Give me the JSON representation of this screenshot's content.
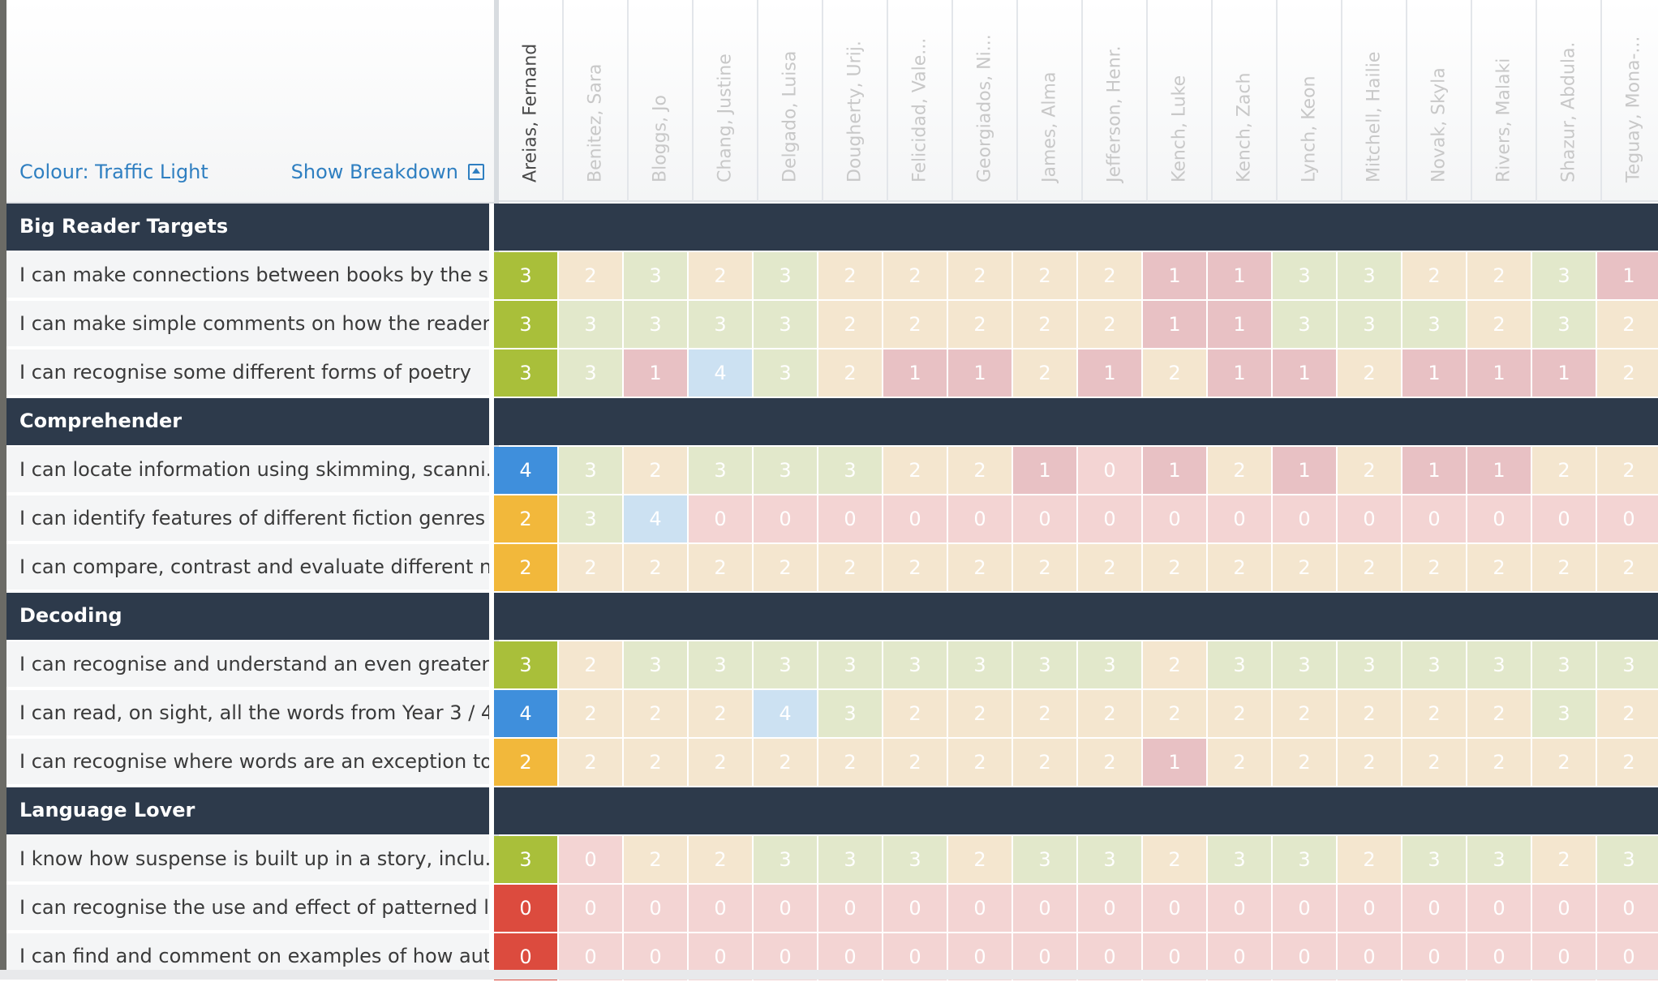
{
  "header": {
    "colour_label": "Colour: Traffic Light",
    "breakdown_label": "Show Breakdown",
    "breakdown_icon": "collapse-up-icon"
  },
  "students": [
    "Areias, Fernand",
    "Benitez, Sara",
    "Bloggs, Jo",
    "Chang, Justine",
    "Delgado, Luisa",
    "Dougherty, Urij.",
    "Felicidad, Vale...",
    "Georgiados, Ni...",
    "James, Alma",
    "Jefferson, Henr.",
    "Kench, Luke",
    "Kench, Zach",
    "Lynch, Keon",
    "Mitchell, Hailie",
    "Novak, Skyla",
    "Rivers, Malaki",
    "Shazur, Abdula.",
    "Teguay, Mona-..."
  ],
  "active_student_index": 0,
  "colours": {
    "category_bg": "#2d3a4b",
    "link": "#2f7fc1",
    "score_0": "#dc4b3e",
    "score_1": "#d87b84",
    "score_2": "#f2b83b",
    "score_3": "#a9bf3a",
    "score_4": "#3f8fdc"
  },
  "categories": [
    {
      "name": "Big Reader Targets",
      "rows": [
        {
          "label": "I can make connections between books by the s...",
          "scores": [
            "3",
            "2",
            "3",
            "2",
            "3",
            "2",
            "2",
            "2",
            "2",
            "2",
            "1",
            "1",
            "3",
            "3",
            "2",
            "2",
            "3",
            "1"
          ]
        },
        {
          "label": "I can make simple comments on how the reader...",
          "scores": [
            "3",
            "3",
            "3",
            "3",
            "3",
            "2",
            "2",
            "2",
            "2",
            "2",
            "1",
            "1",
            "3",
            "3",
            "3",
            "2",
            "3",
            "2"
          ]
        },
        {
          "label": "I can recognise some different forms of poetry",
          "scores": [
            "3",
            "3",
            "1",
            "4",
            "3",
            "2",
            "1",
            "1",
            "2",
            "1",
            "2",
            "1",
            "1",
            "2",
            "1",
            "1",
            "1",
            "2"
          ]
        }
      ]
    },
    {
      "name": "Comprehender",
      "rows": [
        {
          "label": "I can locate information using skimming, scanni...",
          "scores": [
            "4",
            "3",
            "2",
            "3",
            "3",
            "3",
            "2",
            "2",
            "1",
            "0",
            "1",
            "2",
            "1",
            "2",
            "1",
            "1",
            "2",
            "2"
          ]
        },
        {
          "label": "I can identify features of different fiction genres",
          "scores": [
            "2",
            "3",
            "4",
            "0",
            "0",
            "0",
            "0",
            "0",
            "0",
            "0",
            "0",
            "0",
            "0",
            "0",
            "0",
            "0",
            "0",
            "0"
          ]
        },
        {
          "label": "I can compare, contrast and evaluate different n...",
          "scores": [
            "2",
            "2",
            "2",
            "2",
            "2",
            "2",
            "2",
            "2",
            "2",
            "2",
            "2",
            "2",
            "2",
            "2",
            "2",
            "2",
            "2",
            "2"
          ]
        }
      ]
    },
    {
      "name": "Decoding",
      "rows": [
        {
          "label": "I can recognise and understand an even greater ...",
          "scores": [
            "3",
            "2",
            "3",
            "3",
            "3",
            "3",
            "3",
            "3",
            "3",
            "3",
            "2",
            "3",
            "3",
            "3",
            "3",
            "3",
            "3",
            "3"
          ]
        },
        {
          "label": "I can read, on sight, all the words from Year 3 / 4...",
          "scores": [
            "4",
            "2",
            "2",
            "2",
            "4",
            "3",
            "2",
            "2",
            "2",
            "2",
            "2",
            "2",
            "2",
            "2",
            "2",
            "2",
            "3",
            "2"
          ]
        },
        {
          "label": "I can recognise where words are an exception to...",
          "scores": [
            "2",
            "2",
            "2",
            "2",
            "2",
            "2",
            "2",
            "2",
            "2",
            "2",
            "1",
            "2",
            "2",
            "2",
            "2",
            "2",
            "2",
            "2"
          ]
        }
      ]
    },
    {
      "name": "Language Lover",
      "rows": [
        {
          "label": "I know how suspense is built up in a story, inclu...",
          "scores": [
            "3",
            "0",
            "2",
            "2",
            "3",
            "3",
            "3",
            "2",
            "3",
            "3",
            "2",
            "3",
            "3",
            "2",
            "3",
            "3",
            "2",
            "3"
          ]
        },
        {
          "label": "I can recognise the use and effect of patterned l...",
          "scores": [
            "0",
            "0",
            "0",
            "0",
            "0",
            "0",
            "0",
            "0",
            "0",
            "0",
            "0",
            "0",
            "0",
            "0",
            "0",
            "0",
            "0",
            "0"
          ]
        },
        {
          "label": "I can find and comment on examples of how aut...",
          "scores": [
            "0",
            "0",
            "0",
            "0",
            "0",
            "0",
            "0",
            "0",
            "0",
            "0",
            "0",
            "0",
            "0",
            "0",
            "0",
            "0",
            "0",
            "0"
          ]
        }
      ]
    }
  ]
}
